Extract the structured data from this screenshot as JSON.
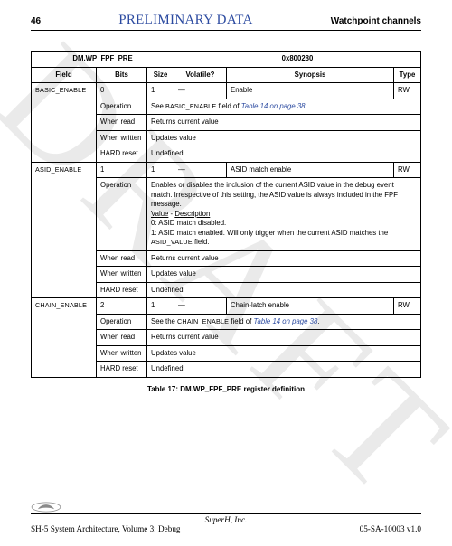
{
  "header": {
    "page_number": "46",
    "preliminary": "PRELIMINARY DATA",
    "section": "Watchpoint channels"
  },
  "watermark": "DRAFT",
  "table": {
    "title_left": "DM.WP_FPF_PRE",
    "title_right": "0x800280",
    "columns": {
      "field": "Field",
      "bits": "Bits",
      "size": "Size",
      "volatile": "Volatile?",
      "synopsis": "Synopsis",
      "type": "Type"
    },
    "groups": [
      {
        "field": "BASIC_ENABLE",
        "head": {
          "bits": "0",
          "size": "1",
          "volatile": "—",
          "synopsis": "Enable",
          "type": "RW"
        },
        "rows": [
          {
            "label": "Operation",
            "value_html": "See <span class=\"smallcaps\">BASIC_ENABLE</span> field of <span class=\"ital\">Table 14 on page 38</span>."
          },
          {
            "label": "When read",
            "value": "Returns current value"
          },
          {
            "label": "When written",
            "value": "Updates value"
          },
          {
            "label": "HARD reset",
            "value": "Undefined"
          }
        ]
      },
      {
        "field": "ASID_ENABLE",
        "head": {
          "bits": "1",
          "size": "1",
          "volatile": "—",
          "synopsis": "ASID match enable",
          "type": "RW"
        },
        "rows": [
          {
            "label": "Operation",
            "value_html": "Enables or disables the inclusion of the current ASID value in the debug event match. Irrespective of this setting, the ASID value is always included in the FPF message.<br><span class=\"u\">Value</span> - <span class=\"u\">Description</span><br>0: ASID match disabled.<br>1: ASID match enabled. Will only trigger when the current ASID matches the <span class=\"smallcaps\">ASID_VALUE</span> field."
          },
          {
            "label": "When read",
            "value": "Returns current value"
          },
          {
            "label": "When written",
            "value": "Updates value"
          },
          {
            "label": "HARD reset",
            "value": "Undefined"
          }
        ]
      },
      {
        "field": "CHAIN_ENABLE",
        "head": {
          "bits": "2",
          "size": "1",
          "volatile": "—",
          "synopsis": "Chain-latch enable",
          "type": "RW"
        },
        "rows": [
          {
            "label": "Operation",
            "value_html": "See the <span class=\"smallcaps\">CHAIN_ENABLE</span> field of <span class=\"ital\">Table 14 on page 38</span>."
          },
          {
            "label": "When read",
            "value": "Returns current value"
          },
          {
            "label": "When written",
            "value": "Updates value"
          },
          {
            "label": "HARD reset",
            "value": "Undefined"
          }
        ]
      }
    ]
  },
  "caption": "Table 17: DM.WP_FPF_PRE register definition",
  "footer": {
    "company": "SuperH, Inc.",
    "doc": "SH-5 System Architecture, Volume 3: Debug",
    "rev": "05-SA-10003 v1.0"
  }
}
